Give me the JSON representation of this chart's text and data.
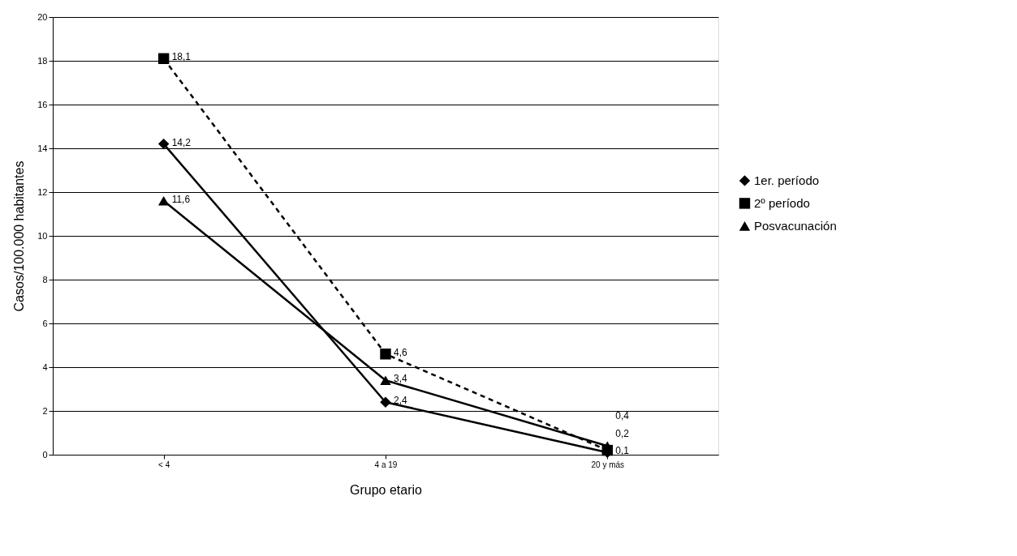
{
  "chart_data": {
    "type": "line",
    "xlabel": "Grupo etario",
    "ylabel": "Casos/100.000 habitantes",
    "categories": [
      "< 4",
      "4 a 19",
      "20 y más"
    ],
    "series": [
      {
        "name": "1er. período",
        "color": "#000000",
        "marker": "diamond",
        "line_style": "solid",
        "values": [
          14.2,
          2.4,
          0.1
        ],
        "value_labels": [
          "14,2",
          "2,4",
          "0,1"
        ]
      },
      {
        "name": "2º período",
        "color": "#000000",
        "marker": "square",
        "line_style": "dashed",
        "values": [
          18.1,
          4.6,
          0.2
        ],
        "value_labels": [
          "18,1",
          "4,6",
          "0,2"
        ]
      },
      {
        "name": "Posvacunación",
        "color": "#000000",
        "marker": "triangle",
        "line_style": "solid",
        "values": [
          11.6,
          3.4,
          0.4
        ],
        "value_labels": [
          "11,6",
          "3,4",
          "0,4"
        ]
      }
    ],
    "ylim": [
      0,
      20
    ],
    "yticks": [
      0,
      2,
      4,
      6,
      8,
      10,
      12,
      14,
      16,
      18,
      20
    ],
    "grid": "y",
    "legend": "right"
  }
}
